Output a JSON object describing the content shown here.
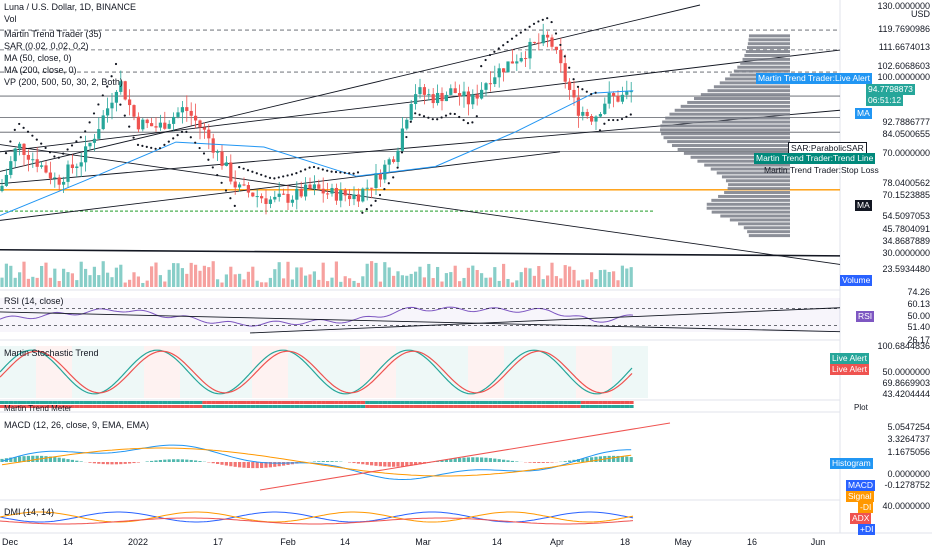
{
  "header": {
    "symbol_line": "Luna / U.S. Dollar, 1D, BINANCE",
    "currency": "USD",
    "vol_label": "Vol"
  },
  "legend_main": [
    "Martin Trend Trader (35)",
    "SAR (0.02, 0.02, 0.2)",
    "MA (50, close, 0)",
    "MA (200, close, 0)",
    "VP (200, 500, 50, 30, 2, Both)"
  ],
  "price_scale": [
    "130.0000000",
    "119.7690986",
    "111.6674013",
    "102.6068603",
    "100.0000000",
    "92.7886777",
    "84.0500655",
    "70.0000000",
    "78.0400562",
    "70.1523885",
    "54.5097053",
    "45.7804091",
    "34.8687889",
    "30.0000000",
    "23.5934480"
  ],
  "price_badges": {
    "live_alert": "Martin Trend Trader:Live Alert",
    "current_price": "94.7798873",
    "countdown": "06:51:12",
    "ma": "MA",
    "sar": "SAR:ParabolicSAR",
    "trend_line": "Martin Trend Trader:Trend Line",
    "stop_loss": "Martin Trend Trader:Stop Loss",
    "ma2": "MA",
    "volume": "Volume"
  },
  "rsi": {
    "legend": "RSI (14, close)",
    "scale": [
      "74.26",
      "60.13",
      "50.00",
      "51.40",
      "26.17"
    ],
    "badge": "RSI"
  },
  "stoch": {
    "legend": "Martin Stochastic Trend",
    "scale": [
      "100.6844836",
      "50.0000000",
      "69.8669903",
      "43.4204444"
    ],
    "badge1": "Live Alert",
    "badge2": "Live Alert"
  },
  "meter": {
    "legend": "Martin Trend Meter",
    "badge": "Plot"
  },
  "macd": {
    "legend": "MACD (12, 26, close, 9, EMA, EMA)",
    "scale": [
      "5.0547254",
      "3.3264737",
      "1.1675056",
      "0.0000000",
      "-0.1278752"
    ],
    "badges": [
      "Histogram",
      "MACD",
      "Signal"
    ]
  },
  "dmi": {
    "legend": "DMI (14, 14)",
    "scale_top": "40.0000000",
    "badges": [
      "-DI",
      "ADX",
      "+DI"
    ]
  },
  "x_labels": [
    "Dec",
    "14",
    "2022",
    "17",
    "Feb",
    "14",
    "Mar",
    "14",
    "Apr",
    "18",
    "May",
    "16",
    "Jun"
  ],
  "colors": {
    "up": "#26a69a",
    "down": "#ef5350",
    "ma50": "#2196f3",
    "vp": "#787b86",
    "orange": "#ff9800",
    "green_dashed": "#4caf50",
    "rsi": "#7e57c2",
    "black": "#131722",
    "teal_badge": "#00897b",
    "blue_badge": "#2962ff"
  },
  "chart_data": {
    "type": "candlestick",
    "title": "Luna / U.S. Dollar, 1D, BINANCE",
    "x_range": [
      "2021-12-01",
      "2022-06-10"
    ],
    "ylim": [
      25,
      130
    ],
    "price_points": [
      {
        "date": "2021-12-01",
        "close": 54
      },
      {
        "date": "2021-12-05",
        "close": 73
      },
      {
        "date": "2021-12-10",
        "close": 65
      },
      {
        "date": "2021-12-14",
        "close": 58
      },
      {
        "date": "2021-12-20",
        "close": 68
      },
      {
        "date": "2021-12-26",
        "close": 90
      },
      {
        "date": "2021-12-28",
        "close": 100
      },
      {
        "date": "2022-01-01",
        "close": 82
      },
      {
        "date": "2022-01-06",
        "close": 80
      },
      {
        "date": "2022-01-12",
        "close": 88
      },
      {
        "date": "2022-01-17",
        "close": 77
      },
      {
        "date": "2022-01-24",
        "close": 55
      },
      {
        "date": "2022-02-01",
        "close": 50
      },
      {
        "date": "2022-02-06",
        "close": 52
      },
      {
        "date": "2022-02-10",
        "close": 55
      },
      {
        "date": "2022-02-14",
        "close": 53
      },
      {
        "date": "2022-02-20",
        "close": 52
      },
      {
        "date": "2022-02-24",
        "close": 58
      },
      {
        "date": "2022-03-01",
        "close": 70
      },
      {
        "date": "2022-03-05",
        "close": 95
      },
      {
        "date": "2022-03-10",
        "close": 92
      },
      {
        "date": "2022-03-14",
        "close": 95
      },
      {
        "date": "2022-03-18",
        "close": 90
      },
      {
        "date": "2022-03-22",
        "close": 100
      },
      {
        "date": "2022-03-28",
        "close": 108
      },
      {
        "date": "2022-04-02",
        "close": 114
      },
      {
        "date": "2022-04-05",
        "close": 116
      },
      {
        "date": "2022-04-08",
        "close": 102
      },
      {
        "date": "2022-04-11",
        "close": 88
      },
      {
        "date": "2022-04-15",
        "close": 84
      },
      {
        "date": "2022-04-18",
        "close": 92
      },
      {
        "date": "2022-04-21",
        "close": 92
      },
      {
        "date": "2022-04-24",
        "close": 94.78
      }
    ],
    "ma50": [
      {
        "date": "2021-12-01",
        "value": 44
      },
      {
        "date": "2021-12-20",
        "value": 58
      },
      {
        "date": "2022-01-10",
        "value": 74
      },
      {
        "date": "2022-01-30",
        "value": 72
      },
      {
        "date": "2022-02-20",
        "value": 60
      },
      {
        "date": "2022-03-10",
        "value": 64
      },
      {
        "date": "2022-03-28",
        "value": 78
      },
      {
        "date": "2022-04-15",
        "value": 94
      },
      {
        "date": "2022-04-24",
        "value": 95
      }
    ],
    "rsi": [
      {
        "date": "2021-12-01",
        "value": 45
      },
      {
        "date": "2021-12-28",
        "value": 68
      },
      {
        "date": "2022-01-24",
        "value": 32
      },
      {
        "date": "2022-02-20",
        "value": 42
      },
      {
        "date": "2022-03-05",
        "value": 70
      },
      {
        "date": "2022-04-05",
        "value": 65
      },
      {
        "date": "2022-04-15",
        "value": 40
      },
      {
        "date": "2022-04-24",
        "value": 51.4
      }
    ]
  }
}
